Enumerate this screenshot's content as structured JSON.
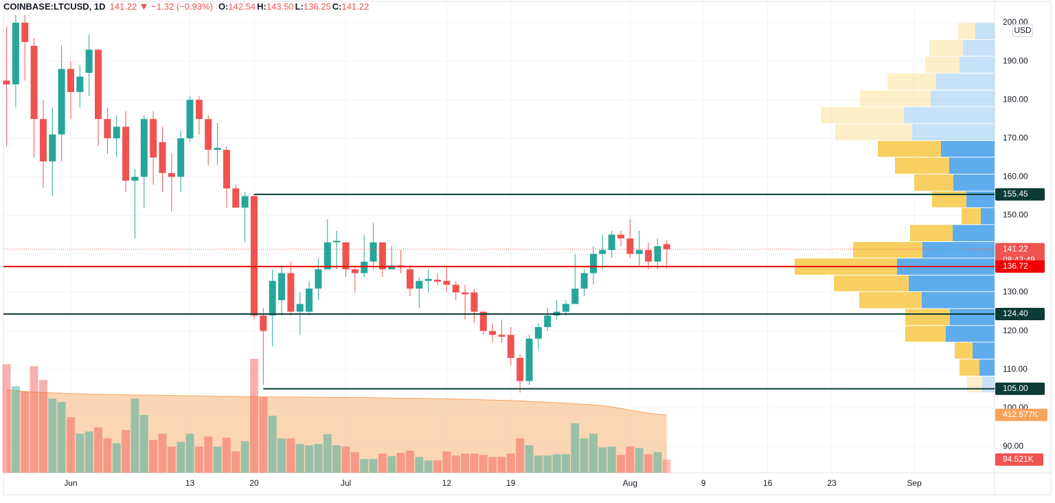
{
  "chart_data": {
    "type": "candlestick",
    "header": {
      "symbol": "COINBASE:LTCUSD, 1D",
      "price": "141.22",
      "change": "−1.32 (−0.93%)",
      "ohlc": [
        {
          "label": "O:",
          "value": "142.54"
        },
        {
          "label": "H:",
          "value": "143.50"
        },
        {
          "label": "L:",
          "value": "136.25"
        },
        {
          "label": "C:",
          "value": "141.22"
        }
      ]
    },
    "currency": "USD",
    "up_color": "#26a69a",
    "down_color": "#ef5350",
    "x": [
      -7,
      -6,
      -5,
      -4,
      -3,
      -2,
      -1,
      0,
      1,
      2,
      3,
      4,
      5,
      6,
      7,
      8,
      9,
      10,
      11,
      12,
      13,
      14,
      15,
      16,
      17,
      18,
      19,
      20,
      21,
      22,
      23,
      24,
      25,
      26,
      27,
      28,
      29,
      30,
      31,
      32,
      33,
      34,
      35,
      36,
      37,
      38,
      39,
      40,
      41,
      42,
      43,
      44,
      45,
      46,
      47,
      48,
      49,
      50,
      51,
      52,
      53,
      54,
      55,
      56,
      57,
      58,
      59,
      60,
      61,
      62,
      63,
      64,
      65
    ],
    "open": [
      185,
      184,
      200,
      194,
      175,
      164,
      171,
      188,
      182,
      187,
      193,
      175,
      170,
      173,
      159,
      160,
      175,
      169,
      161,
      160,
      170,
      180,
      175,
      167,
      167,
      157,
      152,
      155,
      124,
      124,
      128,
      135,
      125,
      125,
      131,
      136,
      143,
      143,
      136,
      135,
      138,
      143,
      136,
      137,
      136,
      131,
      133,
      133.3,
      133,
      132,
      130,
      130,
      125,
      120,
      119,
      119,
      113,
      107,
      118,
      121,
      124,
      125,
      127,
      131,
      135,
      140,
      141,
      145,
      144,
      140,
      141,
      138,
      142.54
    ],
    "high": [
      199,
      202,
      202,
      196,
      180,
      178,
      194,
      190,
      189,
      197,
      193,
      178,
      176,
      177,
      162,
      176,
      177,
      173,
      166,
      172,
      181,
      181,
      176,
      174,
      168,
      158,
      156,
      155.5,
      126,
      136,
      137,
      138,
      130,
      133,
      139,
      149,
      146,
      143,
      137,
      145,
      148,
      143,
      142,
      141,
      137,
      134,
      136,
      135,
      137,
      133,
      132,
      131,
      125,
      122,
      123,
      121,
      114,
      119,
      122,
      126,
      128,
      128,
      140,
      136,
      142,
      145,
      146,
      146,
      149,
      146,
      143,
      144,
      143.5
    ],
    "low": [
      168,
      178,
      185,
      165,
      157,
      155,
      164,
      175,
      178,
      181,
      168,
      166,
      165,
      156,
      144,
      152,
      158,
      156,
      151,
      156,
      169,
      171,
      163,
      163,
      152,
      152,
      143,
      123,
      106,
      116,
      124,
      124,
      119,
      124,
      128,
      136,
      136,
      134,
      130,
      134,
      136,
      134,
      136,
      135,
      129,
      126,
      130,
      132,
      130,
      128,
      123,
      122,
      119,
      117,
      117,
      111,
      104,
      106,
      115,
      120,
      123,
      124,
      127,
      129,
      132,
      136,
      139,
      142,
      139,
      137,
      136,
      136,
      136.25
    ],
    "close": [
      184,
      200,
      195,
      175,
      164,
      171,
      188,
      182,
      186,
      193,
      175,
      170,
      173,
      159,
      160,
      175,
      165,
      161,
      160,
      170,
      180,
      175,
      167,
      167.5,
      157,
      152,
      155,
      124,
      120,
      133,
      135,
      125,
      127,
      131,
      136,
      143,
      143.4,
      136,
      135,
      138,
      143,
      136,
      137,
      136.5,
      131,
      133,
      133.5,
      132.8,
      132,
      130,
      129.5,
      125,
      120,
      119,
      118.5,
      113,
      107,
      118,
      121,
      124,
      125,
      127,
      131,
      135,
      140,
      141,
      145,
      144,
      140,
      141,
      138,
      142,
      141.22
    ],
    "volume": [
      774000,
      617000,
      578000,
      760000,
      662000,
      529000,
      505000,
      397000,
      279000,
      294000,
      323000,
      245000,
      211000,
      304000,
      529000,
      412000,
      235000,
      279000,
      186000,
      221000,
      279000,
      186000,
      260000,
      186000,
      250000,
      152000,
      225000,
      813000,
      539000,
      407000,
      245000,
      245000,
      206000,
      196000,
      206000,
      274000,
      196000,
      186000,
      147000,
      98000,
      98000,
      137000,
      118000,
      142000,
      157000,
      113000,
      88000,
      88000,
      152000,
      123000,
      137000,
      137000,
      127000,
      113000,
      113000,
      137000,
      245000,
      196000,
      123000,
      123000,
      132000,
      132000,
      353000,
      245000,
      279000,
      181000,
      186000,
      127000,
      186000,
      176000,
      132000,
      147000,
      94521
    ],
    "volume_label": "94.521K",
    "volume_ma": [
      590000,
      585000,
      580000,
      575000,
      572000,
      570000,
      568000,
      565000,
      563000,
      561000,
      560000,
      558000,
      557000,
      556000,
      555000,
      554000,
      553000,
      552000,
      551000,
      550000,
      549000,
      548000,
      547000,
      546000,
      545000,
      544000,
      543000,
      542000,
      541000,
      541000,
      540000,
      540000,
      539000,
      539000,
      538000,
      538000,
      537000,
      537000,
      536000,
      536000,
      535000,
      534000,
      533000,
      532000,
      531000,
      530000,
      529000,
      528000,
      527000,
      526000,
      525000,
      523000,
      521000,
      519000,
      517000,
      515000,
      512000,
      509000,
      506000,
      503000,
      500000,
      496000,
      492000,
      488000,
      484000,
      479000,
      470000,
      458000,
      446000,
      435000,
      425000,
      418000,
      412577
    ],
    "volume_ma_label": "412.577K",
    "volume_ma_color": "#f7a35c",
    "volume_ylim": [
      0,
      980000
    ],
    "xlim": [
      -7.34,
      100.75
    ],
    "xticks": [
      {
        "value": 0,
        "label": "Jun"
      },
      13,
      20,
      {
        "value": 30,
        "label": "Jul"
      },
      {
        "value": 41,
        "label": "12"
      },
      {
        "value": 48,
        "label": "19"
      },
      {
        "value": 61,
        "label": "Aug"
      },
      {
        "value": 69,
        "label": "9"
      },
      {
        "value": 76,
        "label": "16"
      },
      {
        "value": 83,
        "label": "23"
      },
      {
        "value": 92,
        "label": "Sep"
      }
    ],
    "ylim": [
      83.2,
      205
    ],
    "yticks": [
      {
        "value": 90,
        "label": "90.00"
      },
      {
        "value": 100,
        "label": "100.00"
      },
      {
        "value": 110,
        "label": "110.00"
      },
      {
        "value": 120,
        "label": "120.00"
      },
      {
        "value": 130,
        "label": "130.00"
      },
      {
        "value": 140,
        "label": "140.00"
      },
      {
        "value": 150,
        "label": "150.00"
      },
      {
        "value": 160,
        "label": "160.00"
      },
      {
        "value": 170,
        "label": "170.00"
      },
      {
        "value": 180,
        "label": "180.00"
      },
      {
        "value": 190,
        "label": "190.00"
      },
      {
        "value": 200,
        "label": "200.00"
      }
    ],
    "grid": true,
    "lines": [
      {
        "price": 155.45,
        "label": "155.45",
        "x0": 20,
        "color": "#0b3b36"
      },
      {
        "price": 136.72,
        "label": "136.72",
        "color": "#f00000"
      },
      {
        "price": 124.4,
        "label": "124.40",
        "color": "#0b3b36"
      },
      {
        "price": 105,
        "label": "105.00",
        "x0": 21,
        "color": "#0b3b36"
      }
    ],
    "last": {
      "price": 141.22,
      "label": "141.22",
      "countdown": "08:42:49",
      "color": "#ef5350"
    },
    "profile": {
      "bounds": [
        200,
        195.6,
        191.3,
        186.9,
        182.5,
        178.2,
        173.8,
        169.4,
        165.1,
        160.7,
        156.3,
        152,
        147.6,
        143.2,
        138.9,
        134.5,
        130.2,
        125.8,
        121.4,
        117.1,
        112.7,
        108.3,
        104
      ],
      "up": [
        28,
        46,
        51,
        85,
        93,
        132,
        120,
        78,
        66,
        60,
        41,
        20,
        61,
        105,
        142,
        125,
        106,
        65,
        71,
        32,
        22,
        18
      ],
      "down": [
        25,
        49,
        50,
        71,
        103,
        121,
        112,
        92,
        79,
        57,
        50,
        28,
        62,
        101,
        149,
        109,
        91,
        65,
        59,
        26,
        29,
        22
      ],
      "value_area": [
        108.3,
        169.4
      ],
      "xlim": [
        0,
        300
      ],
      "up_color": "#5eacec",
      "down_color": "#f8d061"
    }
  }
}
